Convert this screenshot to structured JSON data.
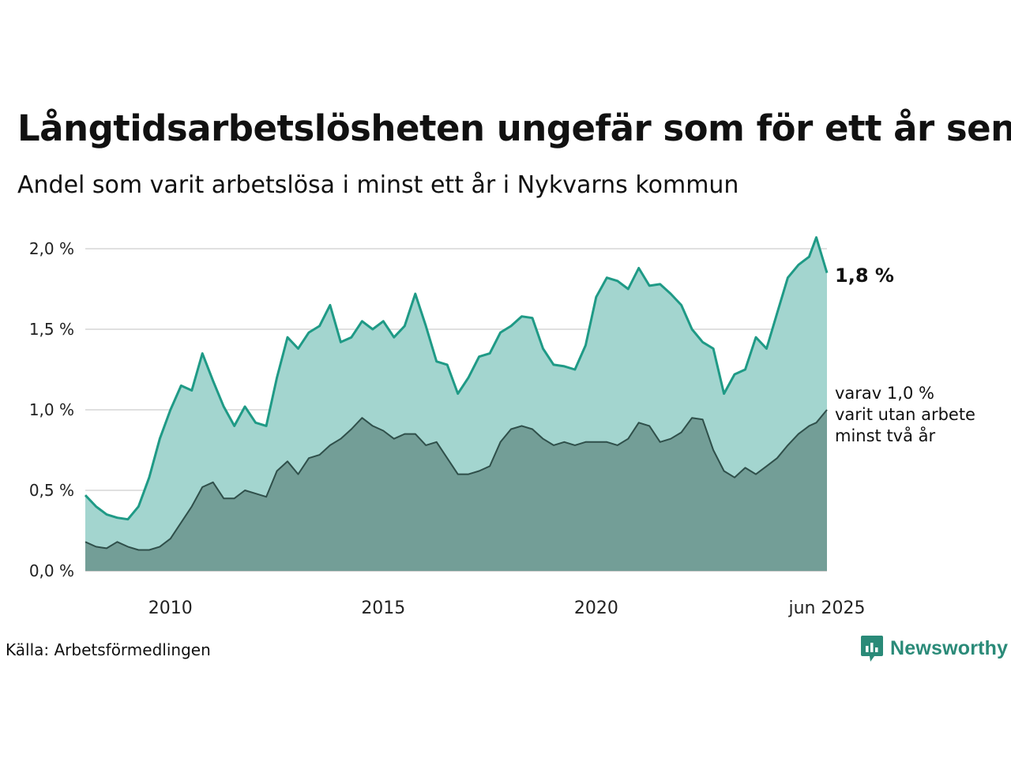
{
  "title": "Långtidsarbetslösheten ungefär som för ett år sen",
  "subtitle": "Andel som varit arbetslösa i minst ett år i Nykvarns kommun",
  "source": "Källa: Arbetsförmedlingen",
  "brand": {
    "name": "Newsworthy",
    "icon": "newsworthy-logo-icon",
    "color": "#2a8a78"
  },
  "last_value_label": "1,8 %",
  "note_lines": [
    "varav 1,0 %",
    "varit utan arbete",
    "minst två år"
  ],
  "colors": {
    "total_line": "#1f9a86",
    "total_fill": "#a3d5cf",
    "sub_line": "#2f4f4a",
    "sub_fill": "#739e97",
    "grid": "#d6d6d6"
  },
  "chart_data": {
    "type": "area",
    "y_tick_labels": [
      "0,0 %",
      "0,5 %",
      "1,0 %",
      "1,5 %",
      "2,0 %"
    ],
    "y_ticks": [
      0,
      0.5,
      1.0,
      1.5,
      2.0
    ],
    "ylim": [
      0,
      2.0
    ],
    "x_tick_labels": [
      "2010",
      "2015",
      "2020",
      "jun 2025"
    ],
    "x_ticks": [
      2010,
      2015,
      2020,
      2025.42
    ],
    "xlim": [
      2008.0,
      2025.42
    ],
    "grid": true,
    "series": [
      {
        "name": "Minst ett år",
        "x": [
          2008.0,
          2008.25,
          2008.5,
          2008.75,
          2009.0,
          2009.25,
          2009.5,
          2009.75,
          2010.0,
          2010.25,
          2010.5,
          2010.75,
          2011.0,
          2011.25,
          2011.5,
          2011.75,
          2012.0,
          2012.25,
          2012.5,
          2012.75,
          2013.0,
          2013.25,
          2013.5,
          2013.75,
          2014.0,
          2014.25,
          2014.5,
          2014.75,
          2015.0,
          2015.25,
          2015.5,
          2015.75,
          2016.0,
          2016.25,
          2016.5,
          2016.75,
          2017.0,
          2017.25,
          2017.5,
          2017.75,
          2018.0,
          2018.25,
          2018.5,
          2018.75,
          2019.0,
          2019.25,
          2019.5,
          2019.75,
          2020.0,
          2020.25,
          2020.5,
          2020.75,
          2021.0,
          2021.25,
          2021.5,
          2021.75,
          2022.0,
          2022.25,
          2022.5,
          2022.75,
          2023.0,
          2023.25,
          2023.5,
          2023.75,
          2024.0,
          2024.25,
          2024.5,
          2024.75,
          2025.0,
          2025.17,
          2025.42
        ],
        "values": [
          0.47,
          0.4,
          0.35,
          0.33,
          0.32,
          0.4,
          0.58,
          0.82,
          1.0,
          1.15,
          1.12,
          1.35,
          1.18,
          1.02,
          0.9,
          1.02,
          0.92,
          0.9,
          1.2,
          1.45,
          1.38,
          1.48,
          1.52,
          1.65,
          1.42,
          1.45,
          1.55,
          1.5,
          1.55,
          1.45,
          1.52,
          1.72,
          1.52,
          1.3,
          1.28,
          1.1,
          1.2,
          1.33,
          1.35,
          1.48,
          1.52,
          1.58,
          1.57,
          1.38,
          1.28,
          1.27,
          1.25,
          1.4,
          1.7,
          1.82,
          1.8,
          1.75,
          1.88,
          1.77,
          1.78,
          1.72,
          1.65,
          1.5,
          1.42,
          1.38,
          1.1,
          1.22,
          1.25,
          1.45,
          1.38,
          1.6,
          1.82,
          1.9,
          1.95,
          2.07,
          1.85
        ]
      },
      {
        "name": "varav minst två år",
        "x": [
          2008.0,
          2008.25,
          2008.5,
          2008.75,
          2009.0,
          2009.25,
          2009.5,
          2009.75,
          2010.0,
          2010.25,
          2010.5,
          2010.75,
          2011.0,
          2011.25,
          2011.5,
          2011.75,
          2012.0,
          2012.25,
          2012.5,
          2012.75,
          2013.0,
          2013.25,
          2013.5,
          2013.75,
          2014.0,
          2014.25,
          2014.5,
          2014.75,
          2015.0,
          2015.25,
          2015.5,
          2015.75,
          2016.0,
          2016.25,
          2016.5,
          2016.75,
          2017.0,
          2017.25,
          2017.5,
          2017.75,
          2018.0,
          2018.25,
          2018.5,
          2018.75,
          2019.0,
          2019.25,
          2019.5,
          2019.75,
          2020.0,
          2020.25,
          2020.5,
          2020.75,
          2021.0,
          2021.25,
          2021.5,
          2021.75,
          2022.0,
          2022.25,
          2022.5,
          2022.75,
          2023.0,
          2023.25,
          2023.5,
          2023.75,
          2024.0,
          2024.25,
          2024.5,
          2024.75,
          2025.0,
          2025.17,
          2025.42
        ],
        "values": [
          0.18,
          0.15,
          0.14,
          0.18,
          0.15,
          0.13,
          0.13,
          0.15,
          0.2,
          0.3,
          0.4,
          0.52,
          0.55,
          0.45,
          0.45,
          0.5,
          0.48,
          0.46,
          0.62,
          0.68,
          0.6,
          0.7,
          0.72,
          0.78,
          0.82,
          0.88,
          0.95,
          0.9,
          0.87,
          0.82,
          0.85,
          0.85,
          0.78,
          0.8,
          0.7,
          0.6,
          0.6,
          0.62,
          0.65,
          0.8,
          0.88,
          0.9,
          0.88,
          0.82,
          0.78,
          0.8,
          0.78,
          0.8,
          0.8,
          0.8,
          0.78,
          0.82,
          0.92,
          0.9,
          0.8,
          0.82,
          0.86,
          0.95,
          0.94,
          0.75,
          0.62,
          0.58,
          0.64,
          0.6,
          0.65,
          0.7,
          0.78,
          0.85,
          0.9,
          0.92,
          1.0
        ]
      }
    ]
  }
}
